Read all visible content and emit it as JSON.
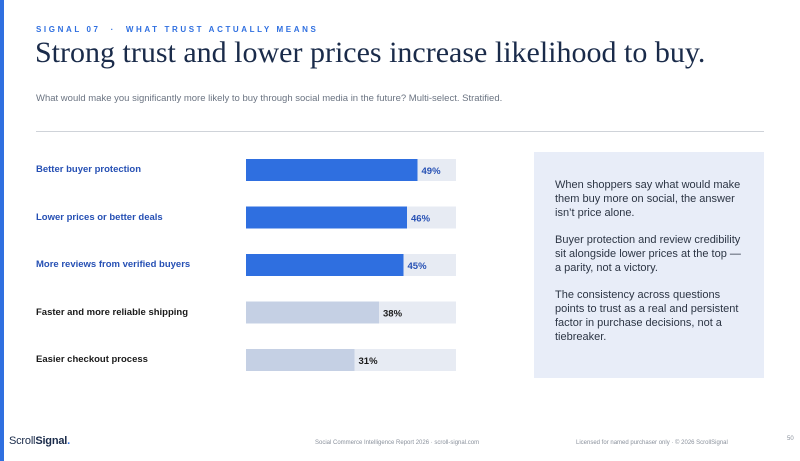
{
  "eyebrow": {
    "signal": "SIGNAL 07",
    "separator": "·",
    "topic": "WHAT TRUST ACTUALLY MEANS"
  },
  "title": "Strong trust and lower prices increase likelihood to buy.",
  "subtitle": "What would make you significantly more likely to buy through social media in the future? Multi-select. Stratified.",
  "chart_data": {
    "type": "bar",
    "orientation": "horizontal",
    "categories": [
      "Better buyer protection",
      "Lower prices or better deals",
      "More reviews from verified buyers",
      "Faster and more reliable shipping",
      "Easier checkout process"
    ],
    "values": [
      49,
      46,
      45,
      38,
      31
    ],
    "value_labels": [
      "49%",
      "46%",
      "45%",
      "38%",
      "31%"
    ],
    "highlighted": [
      true,
      true,
      true,
      false,
      false
    ],
    "xlim": [
      0,
      60
    ],
    "grid": false,
    "colors": {
      "highlight_bar": "#2f6fe0",
      "muted_bar": "#c5d0e4",
      "track": "#e7ebf3",
      "highlight_text": "#2650b4",
      "muted_text": "#1a1a1a"
    }
  },
  "callout": {
    "paragraphs": [
      "When shoppers say what would make them buy more on social, the answer isn’t price alone.",
      "Buyer protection and review credibility sit alongside lower prices at the top — a parity, not a victory.",
      "The consistency across questions points to trust as a real and persistent factor in purchase decisions, not a tiebreaker."
    ]
  },
  "footer": {
    "logo_regular": "Scroll",
    "logo_bold": "Signal",
    "logo_dot": ".",
    "center": "Social Commerce Intelligence Report 2026 · scroll-signal.com",
    "right": "Licensed for named purchaser only · © 2026 ScrollSignal",
    "page_number": "50"
  }
}
